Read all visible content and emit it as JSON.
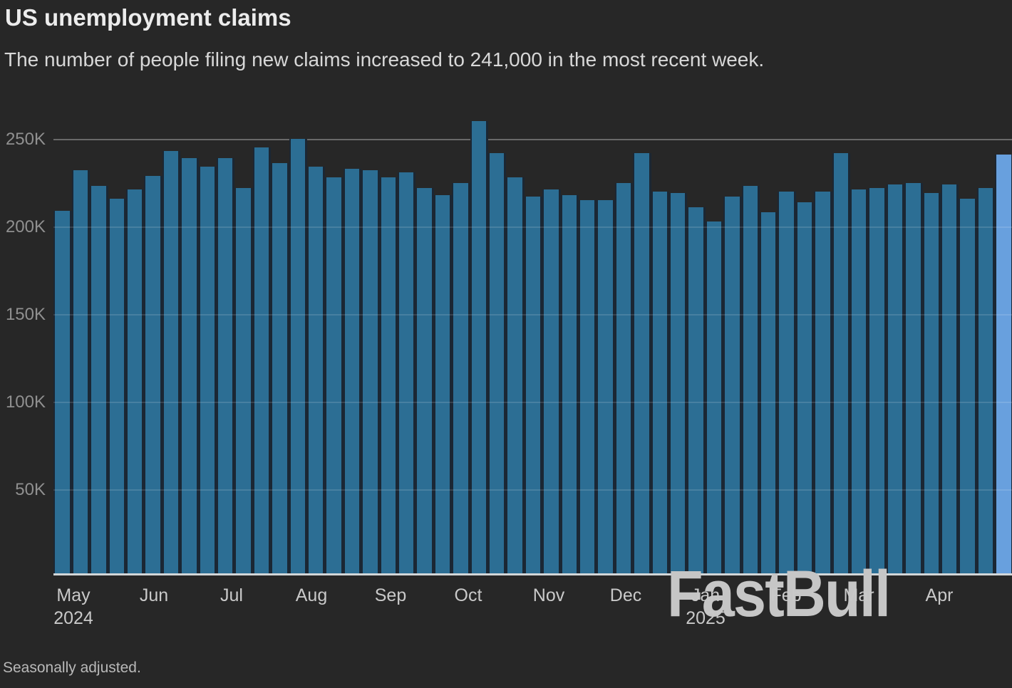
{
  "header": {
    "title": "US unemployment claims",
    "subtitle": "The number of people filing new claims increased to 241,000 in the most recent week."
  },
  "footer": {
    "note": "Seasonally adjusted."
  },
  "watermark": {
    "text": "FastBull"
  },
  "chart_data": {
    "type": "bar",
    "title": "US unemployment claims",
    "subtitle": "The number of people filing new claims increased to 241,000 in the most recent week.",
    "unit": "weekly initial claims, thousands",
    "values_thousands": [
      209,
      232,
      223,
      216,
      221,
      229,
      243,
      239,
      234,
      239,
      222,
      245,
      236,
      250,
      234,
      228,
      233,
      232,
      228,
      231,
      222,
      218,
      225,
      260,
      242,
      228,
      217,
      221,
      218,
      215,
      215,
      225,
      242,
      220,
      219,
      211,
      203,
      217,
      223,
      208,
      220,
      214,
      220,
      242,
      221,
      222,
      224,
      225,
      219,
      224,
      216,
      222,
      241
    ],
    "latest_value": 241000,
    "highlight_last_bar": true,
    "x_axis": {
      "months": [
        {
          "label": "May",
          "sub": "2024"
        },
        {
          "label": "Jun"
        },
        {
          "label": "Jul"
        },
        {
          "label": "Aug"
        },
        {
          "label": "Sep"
        },
        {
          "label": "Oct"
        },
        {
          "label": "Nov"
        },
        {
          "label": "Dec"
        },
        {
          "label": "Jan",
          "sub": "2025"
        },
        {
          "label": "Feb"
        },
        {
          "label": "Mar"
        },
        {
          "label": "Apr"
        }
      ]
    },
    "y_axis": {
      "tick_labels": [
        "50K",
        "100K",
        "150K",
        "200K",
        "250K"
      ],
      "tick_values": [
        50,
        100,
        150,
        200,
        250
      ],
      "ylim": [
        0,
        262
      ],
      "grid": true
    },
    "colors": {
      "background": "#272727",
      "bar": "#2c6e94",
      "highlight_bar": "#68a0de",
      "bar_gap": "#1b2734",
      "grid_major": "#696969",
      "axis_line": "#d2d6d8"
    },
    "source_note": "Seasonally adjusted."
  }
}
